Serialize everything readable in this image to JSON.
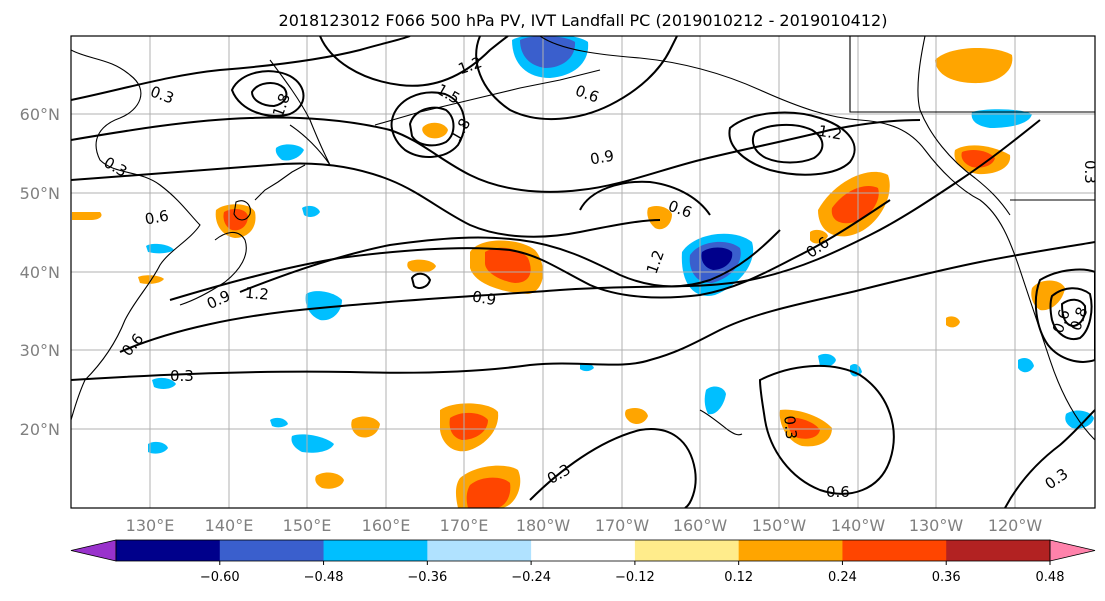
{
  "title": "2018123012 F066 500 hPa PV, IVT Landfall PC (2019010212 - 2019010412)",
  "lon_labels": [
    "130°E",
    "140°E",
    "150°E",
    "160°E",
    "170°E",
    "180°W",
    "170°W",
    "160°W",
    "150°W",
    "140°W",
    "130°W",
    "120°W"
  ],
  "lat_labels": [
    "60°N",
    "50°N",
    "40°N",
    "30°N",
    "20°N"
  ],
  "colorbar": {
    "ticks": [
      "−0.60",
      "−0.48",
      "−0.36",
      "−0.24",
      "−0.12",
      "0.12",
      "0.24",
      "0.36",
      "0.48",
      "0.60"
    ],
    "colors": [
      "#9932cc",
      "#00008b",
      "#3a5fcd",
      "#00bfff",
      "#b0e2ff",
      "#ffffff",
      "#ffec8b",
      "#ffa500",
      "#ff4500",
      "#b22222",
      "#ff82ab"
    ]
  },
  "contour_labels": [
    "0.3",
    "0.3",
    "0.3",
    "0.3",
    "0.3",
    "0.3",
    "0.3",
    "0.6",
    "0.6",
    "0.6",
    "0.6",
    "0.6",
    "0.6",
    "0.6",
    "0.9",
    "0.9",
    "0.9",
    "1.2",
    "1.2",
    "1.2",
    "1.2",
    "1.5",
    "1.8",
    "1.8",
    "0.8"
  ]
}
